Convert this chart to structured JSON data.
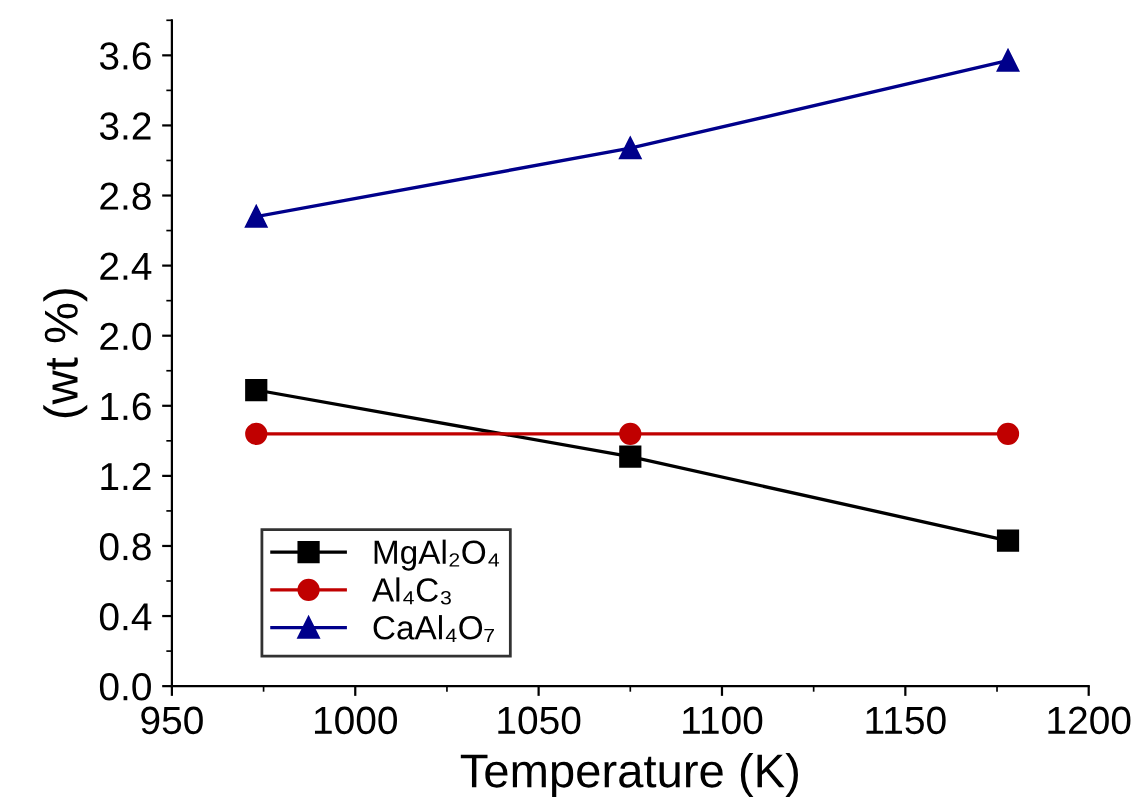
{
  "chart_data": {
    "type": "line",
    "xlabel": "Temperature (K)",
    "ylabel": "(wt %)",
    "x": [
      973,
      1075,
      1178
    ],
    "series": [
      {
        "name": "MgAl₂O₄",
        "color": "#000000",
        "marker": "square",
        "values": [
          1.69,
          1.31,
          0.83
        ]
      },
      {
        "name": "Al₄C₃",
        "color": "#c00000",
        "marker": "circle",
        "values": [
          1.44,
          1.44,
          1.44
        ]
      },
      {
        "name": "CaAl₄O₇",
        "color": "#00008b",
        "marker": "triangle",
        "values": [
          2.68,
          3.07,
          3.57
        ]
      }
    ],
    "xlim": [
      950,
      1200
    ],
    "xticks": [
      950,
      1000,
      1050,
      1100,
      1150,
      1200
    ],
    "ylim": [
      0,
      3.8
    ],
    "yticks": [
      {
        "value": 0,
        "label": "0.0"
      },
      {
        "value": 0.4,
        "label": "0.4"
      },
      {
        "value": 0.8,
        "label": "0.8"
      },
      {
        "value": 1.2,
        "label": "1.2"
      },
      {
        "value": 1.6,
        "label": "1.6"
      },
      {
        "value": 2.0,
        "label": "2.0"
      },
      {
        "value": 2.4,
        "label": "2.4"
      },
      {
        "value": 2.8,
        "label": "2.8"
      },
      {
        "value": 3.2,
        "label": "3.2"
      },
      {
        "value": 3.6,
        "label": "3.6"
      }
    ],
    "legend": "bottom left",
    "grid": false,
    "line_style": "solid"
  }
}
